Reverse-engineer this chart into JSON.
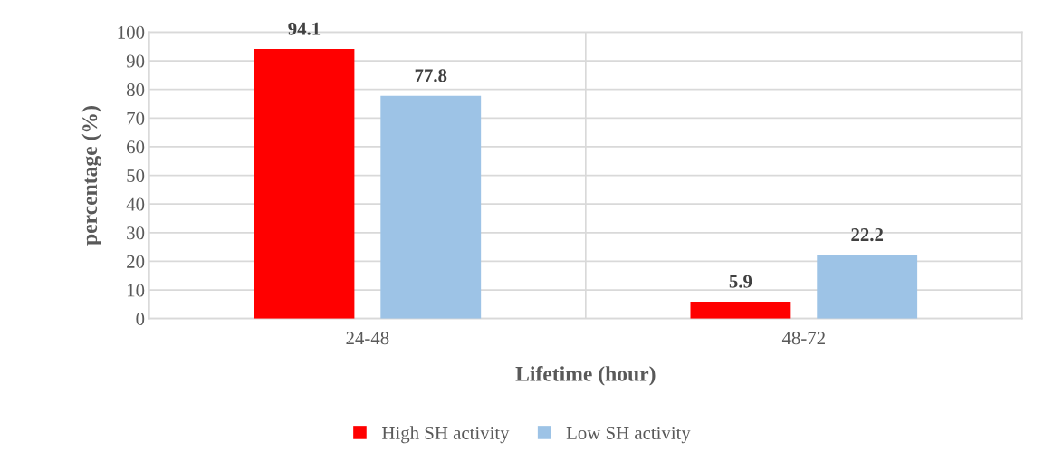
{
  "chart_data": {
    "type": "bar",
    "xlabel": "Lifetime (hour)",
    "ylabel": "percentage (%)",
    "categories": [
      "24-48",
      "48-72"
    ],
    "series": [
      {
        "name": "High SH activity",
        "color": "#ff0000",
        "values": [
          94.1,
          5.9
        ]
      },
      {
        "name": "Low SH activity",
        "color": "#9dc3e6",
        "values": [
          77.8,
          22.2
        ]
      }
    ],
    "ylim": [
      0,
      100
    ],
    "yticks": [
      0,
      10,
      20,
      30,
      40,
      50,
      60,
      70,
      80,
      90,
      100
    ],
    "grid": true,
    "legend": "bottom",
    "data_labels": true
  }
}
